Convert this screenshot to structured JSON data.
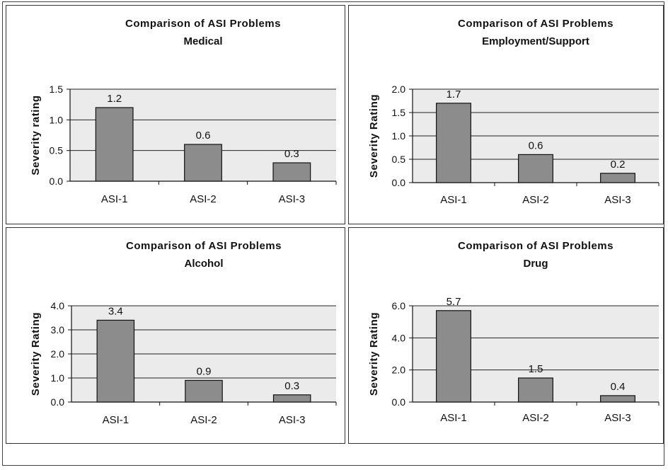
{
  "chart_data": [
    {
      "type": "bar",
      "title": "Comparison of ASI Problems",
      "subtitle": "Medical",
      "ylabel": "Severity rating",
      "categories": [
        "ASI-1",
        "ASI-2",
        "ASI-3"
      ],
      "values": [
        1.2,
        0.6,
        0.3
      ],
      "value_labels": [
        "1.2",
        "0.6",
        "0.3"
      ],
      "yticks": [
        "0.0",
        "0.5",
        "1.0",
        "1.5"
      ],
      "ylim": [
        0,
        1.5
      ],
      "grid": true
    },
    {
      "type": "bar",
      "title": "Comparison of ASI Problems",
      "subtitle": "Employment/Support",
      "ylabel": "Severity Rating",
      "categories": [
        "ASI-1",
        "ASI-2",
        "ASI-3"
      ],
      "values": [
        1.7,
        0.6,
        0.2
      ],
      "value_labels": [
        "1.7",
        "0.6",
        "0.2"
      ],
      "yticks": [
        "0.0",
        "0.5",
        "1.0",
        "1.5",
        "2.0"
      ],
      "ylim": [
        0,
        2.0
      ],
      "grid": true
    },
    {
      "type": "bar",
      "title": "Comparison of ASI Problems",
      "subtitle": "Alcohol",
      "ylabel": "Severity Rating",
      "categories": [
        "ASI-1",
        "ASI-2",
        "ASI-3"
      ],
      "values": [
        3.4,
        0.9,
        0.3
      ],
      "value_labels": [
        "3.4",
        "0.9",
        "0.3"
      ],
      "yticks": [
        "0.0",
        "1.0",
        "2.0",
        "3.0",
        "4.0"
      ],
      "ylim": [
        0,
        4.0
      ],
      "grid": true
    },
    {
      "type": "bar",
      "title": "Comparison of ASI Problems",
      "subtitle": "Drug",
      "ylabel": "Severity Rating",
      "categories": [
        "ASI-1",
        "ASI-2",
        "ASI-3"
      ],
      "values": [
        5.7,
        1.5,
        0.4
      ],
      "value_labels": [
        "5.7",
        "1.5",
        "0.4"
      ],
      "yticks": [
        "0.0",
        "2.0",
        "4.0",
        "6.0"
      ],
      "ylim": [
        0,
        6.0
      ],
      "grid": true
    }
  ],
  "style": {
    "bar_color": "#8c8c8c",
    "plot_background": "#ebebeb",
    "grid_color": "#222222"
  }
}
